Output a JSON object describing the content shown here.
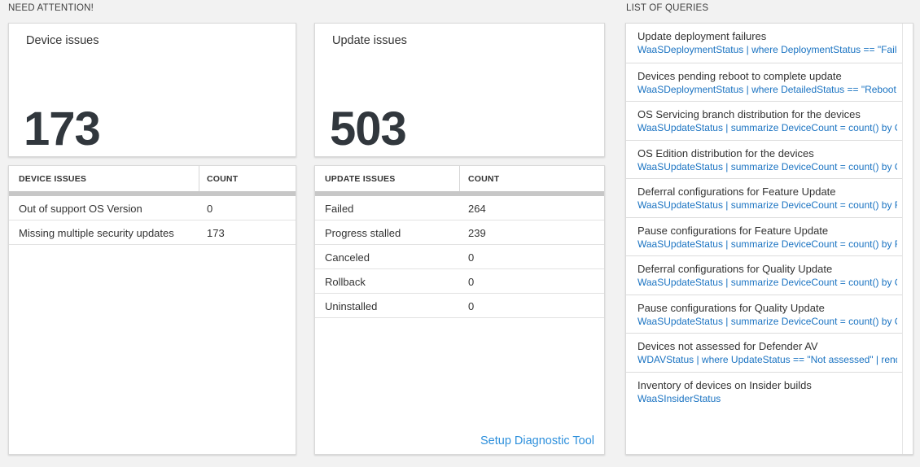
{
  "colors": {
    "page_background": "#f2f2f2",
    "card_background": "#ffffff",
    "big_number": "#31373d",
    "query_link_blue": "#1a73c2",
    "setup_link_blue": "#2e90dc",
    "thick_bar_gray": "#c7c7c7"
  },
  "need_attention": {
    "header": "NEED ATTENTION!",
    "device_tile": {
      "title": "Device issues",
      "count": "173"
    },
    "update_tile": {
      "title": "Update issues",
      "count": "503"
    },
    "device_table": {
      "name_header": "DEVICE ISSUES",
      "count_header": "COUNT",
      "rows": [
        {
          "name": "Out of support OS Version",
          "count": "0"
        },
        {
          "name": "Missing multiple security updates",
          "count": "173"
        }
      ]
    },
    "update_table": {
      "name_header": "UPDATE ISSUES",
      "count_header": "COUNT",
      "rows": [
        {
          "name": "Failed",
          "count": "264"
        },
        {
          "name": "Progress stalled",
          "count": "239"
        },
        {
          "name": "Canceled",
          "count": "0"
        },
        {
          "name": "Rollback",
          "count": "0"
        },
        {
          "name": "Uninstalled",
          "count": "0"
        }
      ]
    },
    "setup_link_label": "Setup Diagnostic Tool"
  },
  "queries": {
    "header": "LIST OF QUERIES",
    "items": [
      {
        "title": "Update deployment failures",
        "query": "WaaSDeploymentStatus | where DeploymentStatus == \"Failed\" |..."
      },
      {
        "title": "Devices pending reboot to complete update",
        "query": "WaaSDeploymentStatus | where DetailedStatus == \"Reboot pend..."
      },
      {
        "title": "OS Servicing branch distribution for the devices",
        "query": "WaaSUpdateStatus | summarize DeviceCount = count() by OSSer..."
      },
      {
        "title": "OS Edition distribution for the devices",
        "query": "WaaSUpdateStatus | summarize DeviceCount = count() by OSEdit..."
      },
      {
        "title": "Deferral configurations for Feature Update",
        "query": "WaaSUpdateStatus | summarize DeviceCount = count() by Featur..."
      },
      {
        "title": "Pause configurations for Feature Update",
        "query": "WaaSUpdateStatus | summarize DeviceCount = count() by Featur..."
      },
      {
        "title": "Deferral configurations for Quality Update",
        "query": "WaaSUpdateStatus | summarize DeviceCount = count() by Qualit..."
      },
      {
        "title": "Pause configurations for Quality Update",
        "query": "WaaSUpdateStatus | summarize DeviceCount = count() by Qualit..."
      },
      {
        "title": "Devices not assessed for Defender AV",
        "query": "WDAVStatus | where UpdateStatus == \"Not assessed\" | render ta..."
      },
      {
        "title": "Inventory of devices on Insider builds",
        "query": "WaaSInsiderStatus"
      }
    ]
  }
}
